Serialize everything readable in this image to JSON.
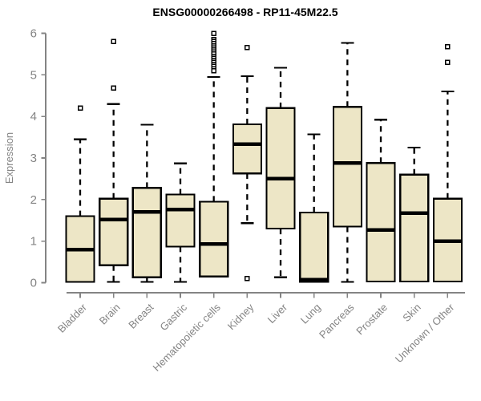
{
  "title": "ENSG00000266498 - RP11-45M22.5",
  "chart_data": {
    "type": "boxplot",
    "title": "ENSG00000266498 - RP11-45M22.5",
    "xlabel": "",
    "ylabel": "Expression",
    "ylim": [
      0,
      6
    ],
    "yticks": [
      0,
      1,
      2,
      3,
      4,
      5,
      6
    ],
    "grid": false,
    "legend": "none",
    "whisker_style": "dashed",
    "outlier_marker": "open-square",
    "categories": [
      "Bladder",
      "Brain",
      "Breast",
      "Gastric",
      "Hematopoietic cells",
      "Kidney",
      "Liver",
      "Lung",
      "Pancreas",
      "Prostate",
      "Skin",
      "Unknown / Other"
    ],
    "boxes": [
      {
        "category": "Bladder",
        "whisker_low": 0.02,
        "q1": 0.02,
        "median": 0.8,
        "q3": 1.6,
        "whisker_high": 3.45,
        "outliers": [
          4.2
        ]
      },
      {
        "category": "Brain",
        "whisker_low": 0.02,
        "q1": 0.42,
        "median": 1.52,
        "q3": 2.02,
        "whisker_high": 4.3,
        "outliers": [
          4.68,
          5.8
        ]
      },
      {
        "category": "Breast",
        "whisker_low": 0.02,
        "q1": 0.13,
        "median": 1.7,
        "q3": 2.28,
        "whisker_high": 3.8,
        "outliers": []
      },
      {
        "category": "Gastric",
        "whisker_low": 0.02,
        "q1": 0.87,
        "median": 1.76,
        "q3": 2.12,
        "whisker_high": 2.87,
        "outliers": []
      },
      {
        "category": "Hematopoietic cells",
        "whisker_low": 0.15,
        "q1": 0.15,
        "median": 0.93,
        "q3": 1.95,
        "whisker_high": 4.95,
        "outliers": [
          6.0,
          5.85,
          5.8,
          5.75,
          5.7,
          5.65,
          5.6,
          5.55,
          5.5,
          5.45,
          5.4,
          5.35,
          5.3,
          5.25,
          5.2,
          5.15,
          5.1
        ]
      },
      {
        "category": "Kidney",
        "whisker_low": 1.43,
        "q1": 2.63,
        "median": 3.33,
        "q3": 3.81,
        "whisker_high": 4.97,
        "outliers": [
          5.66,
          0.1
        ]
      },
      {
        "category": "Liver",
        "whisker_low": 0.13,
        "q1": 1.3,
        "median": 2.5,
        "q3": 4.2,
        "whisker_high": 5.17,
        "outliers": []
      },
      {
        "category": "Lung",
        "whisker_low": 0.02,
        "q1": 0.02,
        "median": 0.07,
        "q3": 1.69,
        "whisker_high": 3.57,
        "outliers": []
      },
      {
        "category": "Pancreas",
        "whisker_low": 0.02,
        "q1": 1.35,
        "median": 2.88,
        "q3": 4.23,
        "whisker_high": 5.77,
        "outliers": []
      },
      {
        "category": "Prostate",
        "whisker_low": 0.03,
        "q1": 0.03,
        "median": 1.27,
        "q3": 2.88,
        "whisker_high": 3.92,
        "outliers": []
      },
      {
        "category": "Skin",
        "whisker_low": 0.03,
        "q1": 0.03,
        "median": 1.67,
        "q3": 2.6,
        "whisker_high": 3.25,
        "outliers": []
      },
      {
        "category": "Unknown / Other",
        "whisker_low": 0.03,
        "q1": 0.03,
        "median": 1.0,
        "q3": 2.02,
        "whisker_high": 4.6,
        "outliers": [
          5.3,
          5.68
        ]
      }
    ],
    "colors": {
      "box_fill": "#EDE6C6",
      "box_border": "#000000",
      "median": "#000000",
      "whisker": "#000000",
      "outlier": "#000000",
      "axis": "#848484",
      "title": "#000000",
      "background": "#FFFFFF"
    }
  }
}
